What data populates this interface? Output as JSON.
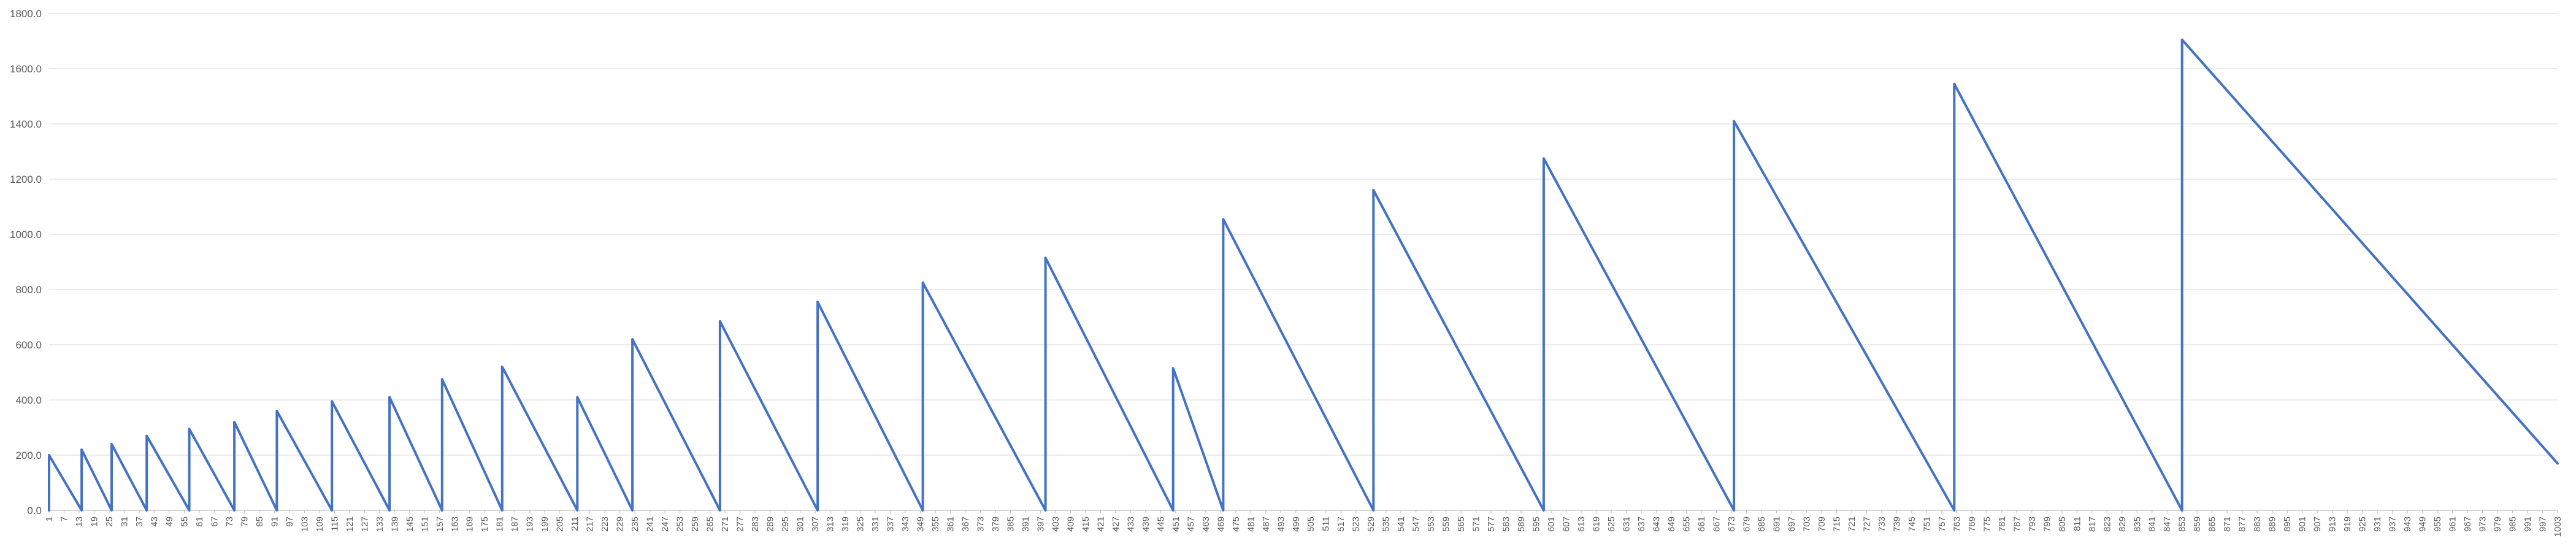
{
  "chart_data": {
    "type": "line",
    "title": "",
    "xlabel": "",
    "ylabel": "",
    "x_range": [
      1,
      1003
    ],
    "xtick_start": 1,
    "xtick_step": 6,
    "ylim": [
      0,
      1800
    ],
    "yticks": [
      "0.0",
      "200.0",
      "400.0",
      "600.0",
      "800.0",
      "1000.0",
      "1200.0",
      "1400.0",
      "1600.0",
      "1800.0"
    ],
    "grid": true,
    "legend": "none",
    "colors": {
      "series": "#4472c4",
      "grid": "#d9d9d9",
      "axis": "#bfbfbf",
      "text": "#595959"
    },
    "series": [
      {
        "points": [
          [
            1,
            0
          ],
          [
            1,
            200
          ],
          [
            14,
            0
          ],
          [
            14,
            220
          ],
          [
            26,
            0
          ],
          [
            26,
            240
          ],
          [
            40,
            0
          ],
          [
            40,
            270
          ],
          [
            57,
            0
          ],
          [
            57,
            295
          ],
          [
            75,
            0
          ],
          [
            75,
            320
          ],
          [
            92,
            0
          ],
          [
            92,
            360
          ],
          [
            114,
            0
          ],
          [
            114,
            395
          ],
          [
            137,
            0
          ],
          [
            137,
            410
          ],
          [
            158,
            0
          ],
          [
            158,
            475
          ],
          [
            182,
            0
          ],
          [
            182,
            520
          ],
          [
            212,
            0
          ],
          [
            212,
            410
          ],
          [
            234,
            0
          ],
          [
            234,
            620
          ],
          [
            269,
            0
          ],
          [
            269,
            685
          ],
          [
            308,
            0
          ],
          [
            308,
            755
          ],
          [
            350,
            0
          ],
          [
            350,
            825
          ],
          [
            399,
            0
          ],
          [
            399,
            915
          ],
          [
            450,
            0
          ],
          [
            450,
            515
          ],
          [
            470,
            0
          ],
          [
            470,
            1055
          ],
          [
            530,
            0
          ],
          [
            530,
            1160
          ],
          [
            598,
            0
          ],
          [
            598,
            1275
          ],
          [
            674,
            0
          ],
          [
            674,
            1410
          ],
          [
            762,
            0
          ],
          [
            762,
            1545
          ],
          [
            853,
            0
          ],
          [
            853,
            1705
          ],
          [
            1003,
            170
          ]
        ]
      }
    ]
  }
}
